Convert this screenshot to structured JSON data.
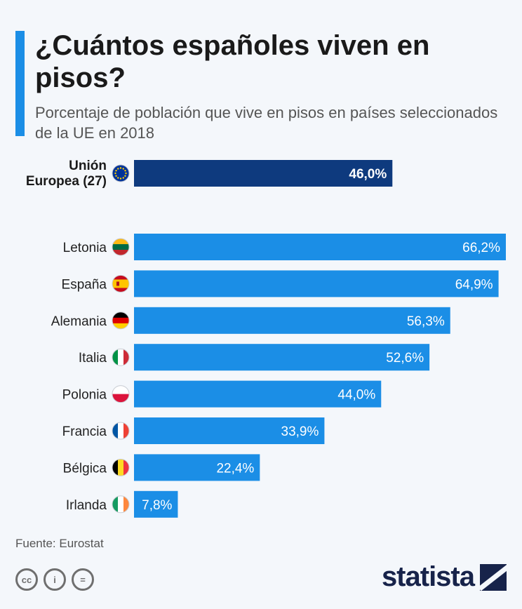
{
  "chart_data": {
    "type": "bar",
    "orientation": "horizontal",
    "title": "¿Cuántos españoles viven en pisos?",
    "subtitle": "Porcentaje de población que vive en pisos en países seleccionados de la UE en 2018",
    "reference": {
      "category_lines": [
        "Unión",
        "Europea (27)"
      ],
      "value": 46.0,
      "label": "46,0%",
      "color": "#0e3a7e",
      "flag": "eu"
    },
    "categories": [
      "Letonia",
      "España",
      "Alemania",
      "Italia",
      "Polonia",
      "Francia",
      "Bélgica",
      "Irlanda"
    ],
    "values": [
      66.2,
      64.9,
      56.3,
      52.6,
      44.0,
      33.9,
      22.4,
      7.8
    ],
    "labels": [
      "66,2%",
      "64,9%",
      "56,3%",
      "52,6%",
      "44,0%",
      "33,9%",
      "22,4%",
      "7,8%"
    ],
    "flags": [
      "letonia",
      "espana",
      "alemania",
      "italia",
      "polonia",
      "francia",
      "belgica",
      "irlanda"
    ],
    "bar_color": "#1b8ee6",
    "xlim": [
      0,
      66.2
    ],
    "xlabel": "",
    "ylabel": ""
  },
  "source": "Fuente: Eurostat",
  "brand": "statista",
  "license_icons": [
    "cc",
    "i",
    "="
  ]
}
